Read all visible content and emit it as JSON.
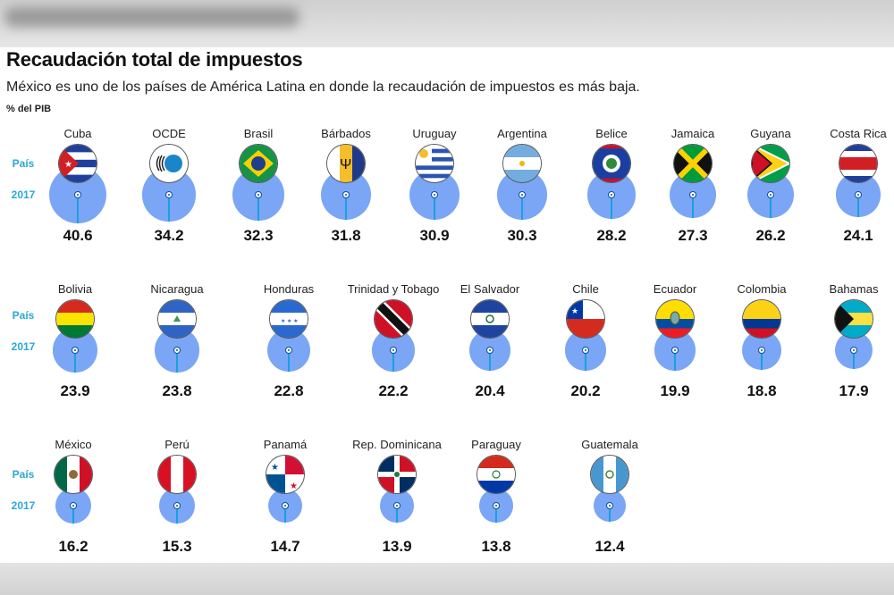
{
  "header": {
    "title": "Recaudación total de impuestos",
    "subtitle": "México es uno de los países de América Latina en donde la recaudación de impuestos es más baja.",
    "unit": "% del PIB",
    "row_label_country": "País",
    "row_label_year": "2017"
  },
  "chart_data": {
    "type": "bubble",
    "title": "Recaudación total de impuestos",
    "ylabel": "% del PIB",
    "year": "2017",
    "rows": [
      [
        {
          "name": "Cuba",
          "value": 40.6,
          "flag": "cuba"
        },
        {
          "name": "OCDE",
          "value": 34.2,
          "flag": "ocde"
        },
        {
          "name": "Brasil",
          "value": 32.3,
          "flag": "brasil"
        },
        {
          "name": "Bárbados",
          "value": 31.8,
          "flag": "barbados"
        },
        {
          "name": "Uruguay",
          "value": 30.9,
          "flag": "uruguay"
        },
        {
          "name": "Argentina",
          "value": 30.3,
          "flag": "argentina"
        },
        {
          "name": "Belice",
          "value": 28.2,
          "flag": "belice"
        },
        {
          "name": "Jamaica",
          "value": 27.3,
          "flag": "jamaica"
        },
        {
          "name": "Guyana",
          "value": 26.2,
          "flag": "guyana"
        },
        {
          "name": "Costa Rica",
          "value": 24.1,
          "flag": "costa-rica"
        }
      ],
      [
        {
          "name": "Bolivia",
          "value": 23.9,
          "flag": "bolivia"
        },
        {
          "name": "Nicaragua",
          "value": 23.8,
          "flag": "nicaragua"
        },
        {
          "name": "Honduras",
          "value": 22.8,
          "flag": "honduras"
        },
        {
          "name": "Trinidad y Tobago",
          "value": 22.2,
          "flag": "trinidad"
        },
        {
          "name": "El Salvador",
          "value": 20.4,
          "flag": "el-salvador"
        },
        {
          "name": "Chile",
          "value": 20.2,
          "flag": "chile"
        },
        {
          "name": "Ecuador",
          "value": 19.9,
          "flag": "ecuador"
        },
        {
          "name": "Colombia",
          "value": 18.8,
          "flag": "colombia"
        },
        {
          "name": "Bahamas",
          "value": 17.9,
          "flag": "bahamas"
        }
      ],
      [
        {
          "name": "México",
          "value": 16.2,
          "flag": "mexico"
        },
        {
          "name": "Perú",
          "value": 15.3,
          "flag": "peru"
        },
        {
          "name": "Panamá",
          "value": 14.7,
          "flag": "panama"
        },
        {
          "name": "Rep. Dominicana",
          "value": 13.9,
          "flag": "rep-dominicana"
        },
        {
          "name": "Paraguay",
          "value": 13.8,
          "flag": "paraguay"
        },
        {
          "name": "Guatemala",
          "value": 12.4,
          "flag": "guatemala"
        }
      ]
    ]
  },
  "colors": {
    "bubble": "#7aa6f5",
    "accent": "#29a8d6",
    "stem": "#1aa0e0"
  }
}
